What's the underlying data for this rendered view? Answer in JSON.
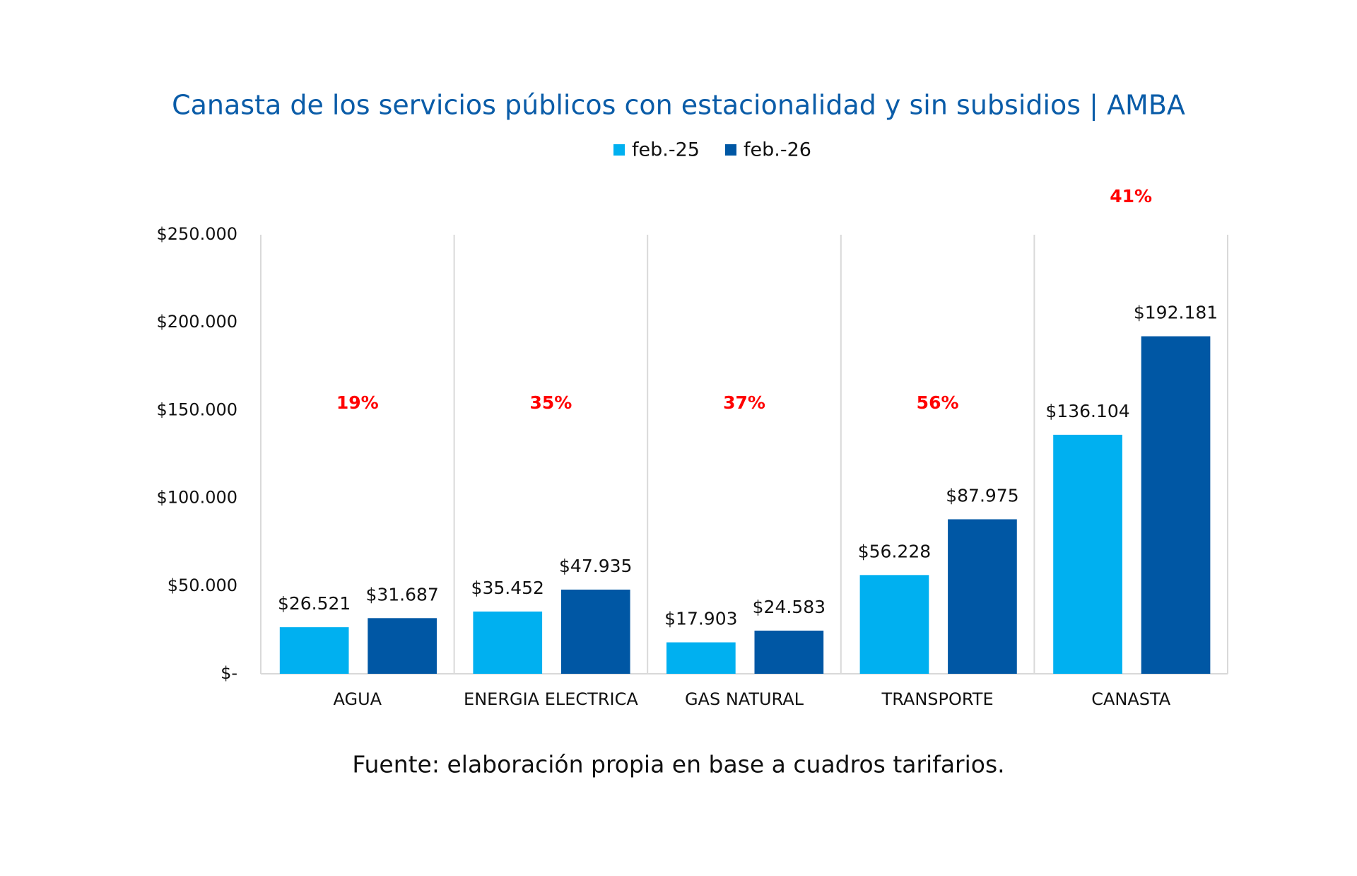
{
  "chart_data": {
    "type": "bar",
    "title": "Canasta de los servicios públicos con estacionalidad y sin subsidios | AMBA",
    "categories": [
      "AGUA",
      "ENERGIA ELECTRICA",
      "GAS NATURAL",
      "TRANSPORTE",
      "CANASTA"
    ],
    "series": [
      {
        "name": "feb.-25",
        "color": "#00b0f0",
        "values": [
          26521,
          35452,
          17903,
          56228,
          136104
        ],
        "value_labels": [
          "$26.521",
          "$35.452",
          "$17.903",
          "$56.228",
          "$136.104"
        ]
      },
      {
        "name": "feb.-26",
        "color": "#0057a4",
        "values": [
          31687,
          47935,
          24583,
          87975,
          192181
        ],
        "value_labels": [
          "$31.687",
          "$47.935",
          "$24.583",
          "$87.975",
          "$192.181"
        ]
      }
    ],
    "growth": {
      "color": "#ff0000",
      "values": [
        19,
        35,
        37,
        56,
        41
      ],
      "value_labels": [
        "19%",
        "35%",
        "37%",
        "56%",
        "41%"
      ]
    },
    "ylim": [
      0,
      250000
    ],
    "yticks": [
      {
        "value": 0,
        "label": "$-"
      },
      {
        "value": 50000,
        "label": "$50.000"
      },
      {
        "value": 100000,
        "label": "$100.000"
      },
      {
        "value": 150000,
        "label": "$150.000"
      },
      {
        "value": 200000,
        "label": "$200.000"
      },
      {
        "value": 250000,
        "label": "$250.000"
      }
    ],
    "legend": "top",
    "source": "Fuente: elaboración propia en base a cuadros tarifarios."
  }
}
